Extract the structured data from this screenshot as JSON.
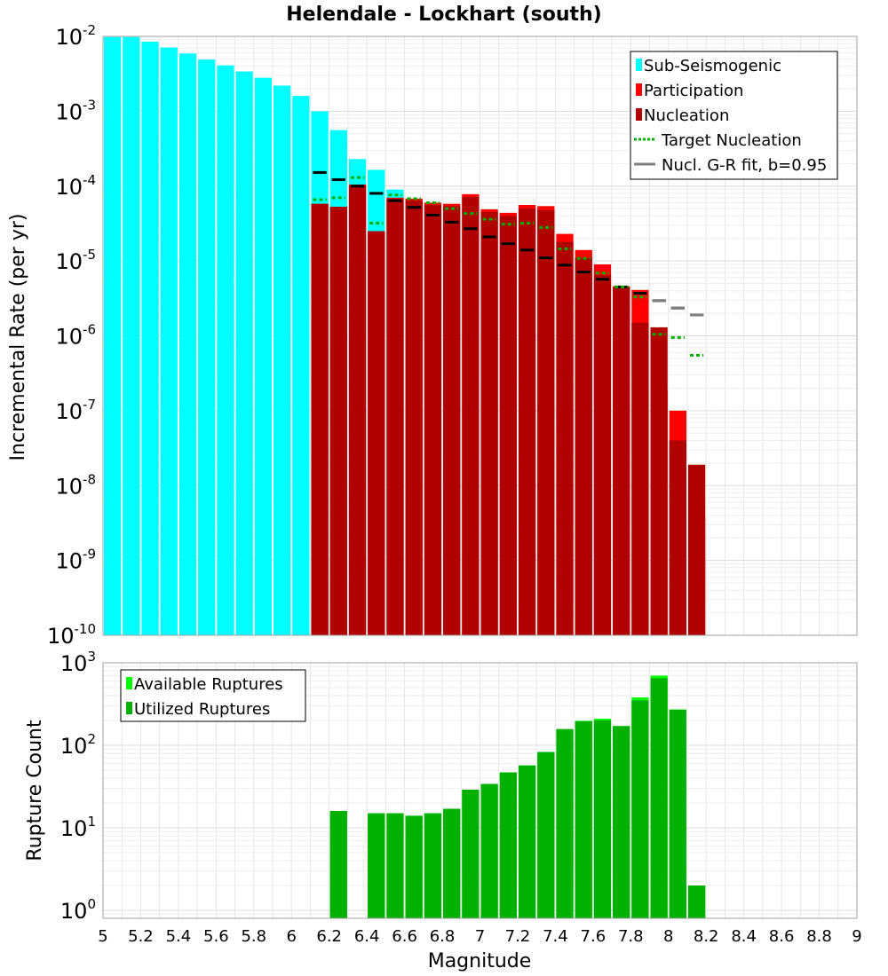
{
  "chart_data": [
    {
      "type": "bar",
      "title": "Helendale - Lockhart (south)",
      "xlabel": "",
      "ylabel": "Incremental Rate (per yr)",
      "yscale": "log",
      "xlim": [
        5,
        9
      ],
      "ylim": [
        1e-10,
        0.01
      ],
      "y_tick_labels": [
        {
          "base": "10",
          "exp": "-10"
        },
        {
          "base": "10",
          "exp": "-9"
        },
        {
          "base": "10",
          "exp": "-8"
        },
        {
          "base": "10",
          "exp": "-7"
        },
        {
          "base": "10",
          "exp": "-6"
        },
        {
          "base": "10",
          "exp": "-5"
        },
        {
          "base": "10",
          "exp": "-4"
        },
        {
          "base": "10",
          "exp": "-3"
        },
        {
          "base": "10",
          "exp": "-2"
        }
      ],
      "bin_width": 0.1,
      "legend": [
        {
          "label": "Sub-Seismogenic",
          "color": "#00ffff",
          "kind": "bar"
        },
        {
          "label": "Participation",
          "color": "#ff0000",
          "kind": "bar"
        },
        {
          "label": "Nucleation",
          "color": "#b00000",
          "kind": "bar"
        },
        {
          "label": "Target Nucleation",
          "color": "#00b000",
          "kind": "dotted"
        },
        {
          "label": "Nucl. G-R fit, b=0.95",
          "color": "#808080",
          "kind": "line"
        }
      ],
      "legend_position": "top-right",
      "series": [
        {
          "name": "Sub-Seismogenic",
          "x": [
            5.05,
            5.15,
            5.25,
            5.35,
            5.45,
            5.55,
            5.65,
            5.75,
            5.85,
            5.95,
            6.05,
            6.15,
            6.25,
            6.35,
            6.45,
            6.55
          ],
          "values": [
            0.0098,
            0.0098,
            0.0085,
            0.0071,
            0.0059,
            0.0049,
            0.0041,
            0.0034,
            0.0028,
            0.0022,
            0.0016,
            0.001,
            0.00056,
            0.00023,
            0.000165,
            9e-05
          ]
        },
        {
          "name": "Participation",
          "x": [
            6.15,
            6.25,
            6.35,
            6.45,
            6.55,
            6.65,
            6.75,
            6.85,
            6.95,
            7.05,
            7.15,
            7.25,
            7.35,
            7.45,
            7.55,
            7.65,
            7.75,
            7.85,
            7.95,
            8.05,
            8.15
          ],
          "values": [
            5.8e-05,
            5.3e-05,
            0.000105,
            2.5e-05,
            7e-05,
            6.8e-05,
            6e-05,
            5.8e-05,
            7.8e-05,
            4.9e-05,
            4.4e-05,
            5.6e-05,
            5.4e-05,
            2.3e-05,
            1.4e-05,
            9e-06,
            4.6e-06,
            4.1e-06,
            1.9e-07,
            1e-07,
            3.8e-09
          ]
        },
        {
          "name": "Nucleation",
          "x": [
            6.15,
            6.25,
            6.35,
            6.45,
            6.55,
            6.65,
            6.75,
            6.85,
            6.95,
            7.05,
            7.15,
            7.25,
            7.35,
            7.45,
            7.55,
            7.65,
            7.75,
            7.85,
            7.95,
            8.05,
            8.15
          ],
          "values": [
            5.8e-05,
            5.3e-05,
            0.0001,
            2.5e-05,
            6.7e-05,
            6.4e-05,
            5.6e-05,
            5.4e-05,
            7.2e-05,
            4.5e-05,
            4e-05,
            5e-05,
            4.8e-05,
            1.8e-05,
            1.1e-05,
            6.5e-06,
            4.5e-06,
            1.5e-06,
            1.3e-06,
            4e-08,
            1.9e-08
          ]
        },
        {
          "name": "Target Nucleation",
          "x": [
            6.15,
            6.25,
            6.35,
            6.45,
            6.55,
            6.65,
            6.75,
            6.85,
            6.95,
            7.05,
            7.15,
            7.25,
            7.35,
            7.45,
            7.55,
            7.65,
            7.75,
            7.85,
            7.95,
            8.05,
            8.15
          ],
          "values": [
            6.6e-05,
            7e-05,
            0.00013,
            3.2e-05,
            7.6e-05,
            6.8e-05,
            6e-05,
            5e-05,
            4.3e-05,
            3.6e-05,
            3.1e-05,
            3.2e-05,
            2.8e-05,
            1.45e-05,
            1.08e-05,
            6.9e-06,
            4.5e-06,
            3.3e-06,
            1.05e-06,
            9.5e-07,
            5.5e-07
          ]
        },
        {
          "name": "Nucl. G-R fit, b=0.95",
          "x": [
            6.15,
            6.25,
            6.35,
            6.45,
            6.55,
            6.65,
            6.75,
            6.85,
            6.95,
            7.05,
            7.15,
            7.25,
            7.35,
            7.45,
            7.55,
            7.65,
            7.75,
            7.85,
            7.95,
            8.05,
            8.15
          ],
          "values": [
            0.000152,
            0.000122,
            0.0001,
            8e-05,
            6.4e-05,
            5.2e-05,
            4.1e-05,
            3.3e-05,
            2.7e-05,
            2.1e-05,
            1.7e-05,
            1.4e-05,
            1.1e-05,
            8.8e-06,
            7.1e-06,
            5.7e-06,
            4.5e-06,
            3.7e-06,
            2.95e-06,
            2.35e-06,
            1.9e-06
          ]
        }
      ]
    },
    {
      "type": "bar",
      "title": "",
      "xlabel": "Magnitude",
      "ylabel": "Rupture Count",
      "yscale": "log",
      "xlim": [
        5,
        9
      ],
      "ylim": [
        0.8,
        1000
      ],
      "y_tick_labels": [
        {
          "base": "10",
          "exp": "0"
        },
        {
          "base": "10",
          "exp": "1"
        },
        {
          "base": "10",
          "exp": "2"
        },
        {
          "base": "10",
          "exp": "3"
        }
      ],
      "x_tick_labels": [
        "5",
        "5.2",
        "5.4",
        "5.6",
        "5.8",
        "6",
        "6.2",
        "6.4",
        "6.6",
        "6.8",
        "7",
        "7.2",
        "7.4",
        "7.6",
        "7.8",
        "8",
        "8.2",
        "8.4",
        "8.6",
        "8.8",
        "9"
      ],
      "bin_width": 0.1,
      "legend": [
        {
          "label": "Available Ruptures",
          "color": "#00ff00",
          "kind": "bar"
        },
        {
          "label": "Utilized Ruptures",
          "color": "#00b000",
          "kind": "bar"
        }
      ],
      "legend_position": "top-left",
      "series": [
        {
          "name": "Available Ruptures",
          "x": [
            6.25,
            6.45,
            6.55,
            6.65,
            6.75,
            6.85,
            6.95,
            7.05,
            7.15,
            7.25,
            7.35,
            7.45,
            7.55,
            7.65,
            7.75,
            7.85,
            7.95,
            8.05,
            8.15
          ],
          "values": [
            16,
            15,
            15,
            14,
            15,
            17,
            29,
            34,
            47,
            57,
            83,
            157,
            198,
            210,
            171,
            380,
            700,
            272,
            2
          ]
        },
        {
          "name": "Utilized Ruptures",
          "x": [
            6.25,
            6.45,
            6.55,
            6.65,
            6.75,
            6.85,
            6.95,
            7.05,
            7.15,
            7.25,
            7.35,
            7.45,
            7.55,
            7.65,
            7.75,
            7.85,
            7.95,
            8.05,
            8.15
          ],
          "values": [
            16,
            15,
            15,
            14,
            15,
            17,
            29,
            34,
            47,
            57,
            83,
            157,
            195,
            200,
            171,
            350,
            650,
            270,
            2
          ]
        }
      ]
    }
  ]
}
